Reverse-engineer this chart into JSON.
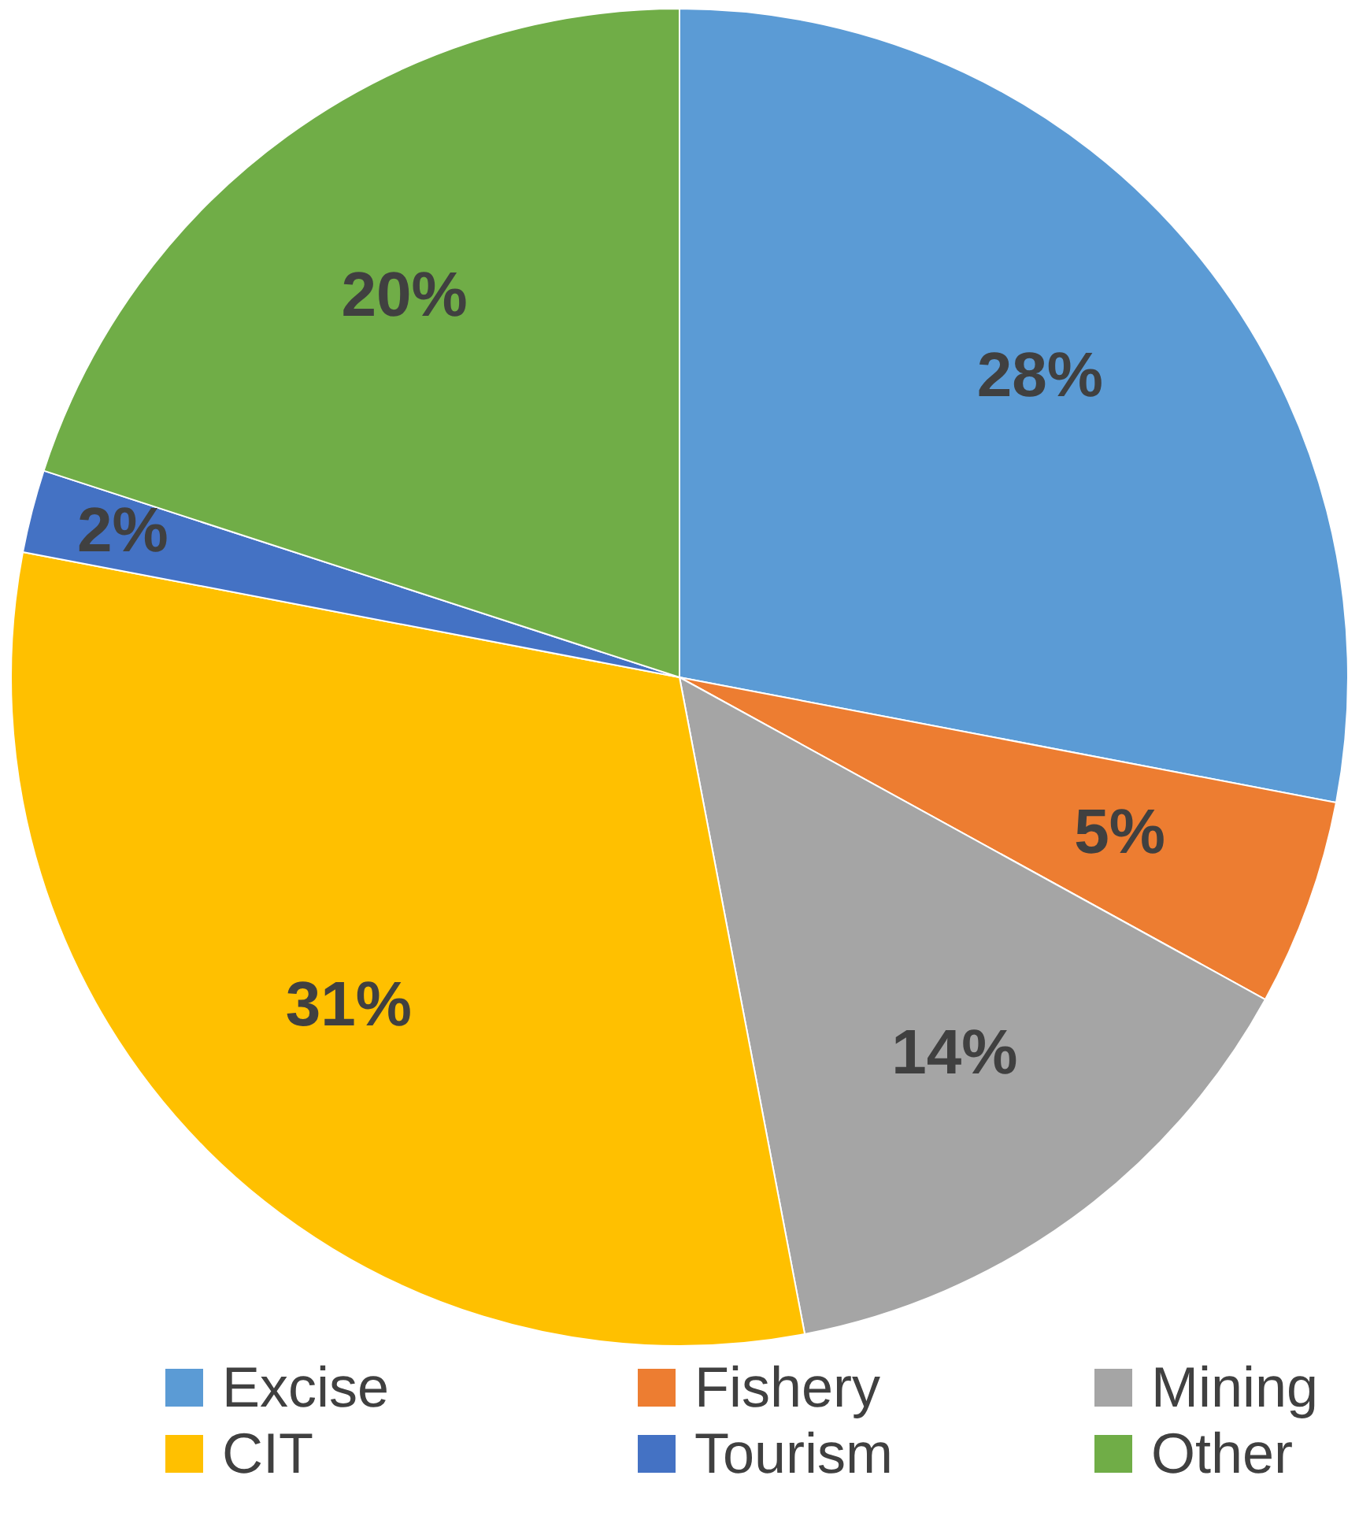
{
  "chart_data": {
    "type": "pie",
    "categories": [
      "Excise",
      "Fishery",
      "Mining",
      "CIT",
      "Tourism",
      "Other"
    ],
    "values": [
      28,
      5,
      14,
      31,
      2,
      20
    ],
    "colors": [
      "#5b9bd5",
      "#ed7d31",
      "#a5a5a5",
      "#ffc000",
      "#4472c4",
      "#70ad47"
    ],
    "value_labels": [
      "28%",
      "5%",
      "14%",
      "31%",
      "2%",
      "20%"
    ],
    "legend": "bottom"
  }
}
